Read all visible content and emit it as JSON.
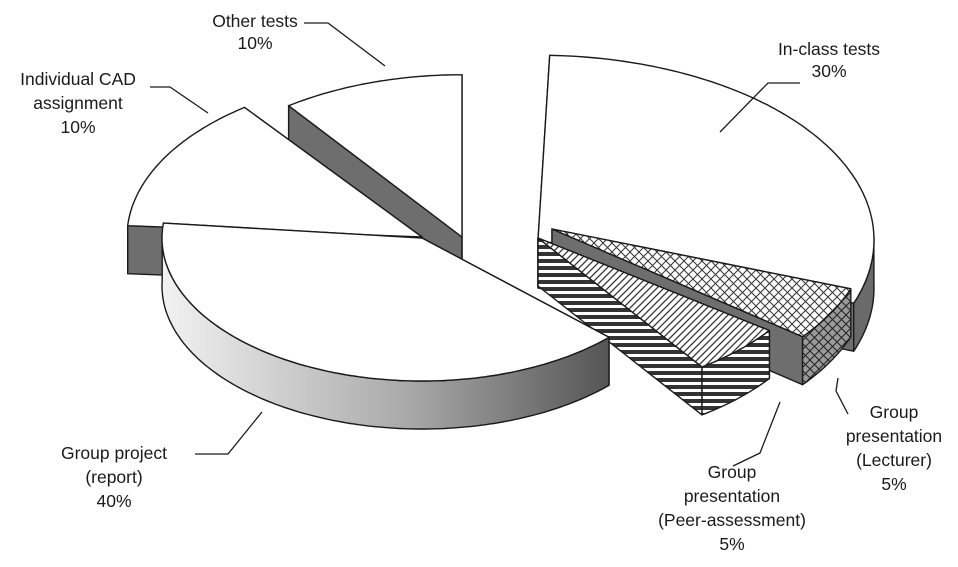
{
  "chart_data": {
    "type": "pie",
    "style": "3d-exploded",
    "slices": [
      {
        "label_lines": [
          "In-class tests"
        ],
        "value": 30,
        "pct_label": "30%",
        "pattern": "plain"
      },
      {
        "label_lines": [
          "Group",
          "presentation",
          "(Lecturer)"
        ],
        "value": 5,
        "pct_label": "5%",
        "pattern": "crosshatch"
      },
      {
        "label_lines": [
          "Group",
          "presentation",
          "(Peer-assessment)"
        ],
        "value": 5,
        "pct_label": "5%",
        "pattern": "diagonal-horizontal"
      },
      {
        "label_lines": [
          "Group project",
          "(report)"
        ],
        "value": 40,
        "pct_label": "40%",
        "pattern": "plain"
      },
      {
        "label_lines": [
          "Individual CAD",
          "assignment"
        ],
        "value": 10,
        "pct_label": "10%",
        "pattern": "plain"
      },
      {
        "label_lines": [
          "Other tests"
        ],
        "value": 10,
        "pct_label": "10%",
        "pattern": "plain"
      }
    ],
    "colors": {
      "top_fill": "#ffffff",
      "side_fill": "#6e6e6e",
      "outline": "#1a1a1a"
    }
  }
}
